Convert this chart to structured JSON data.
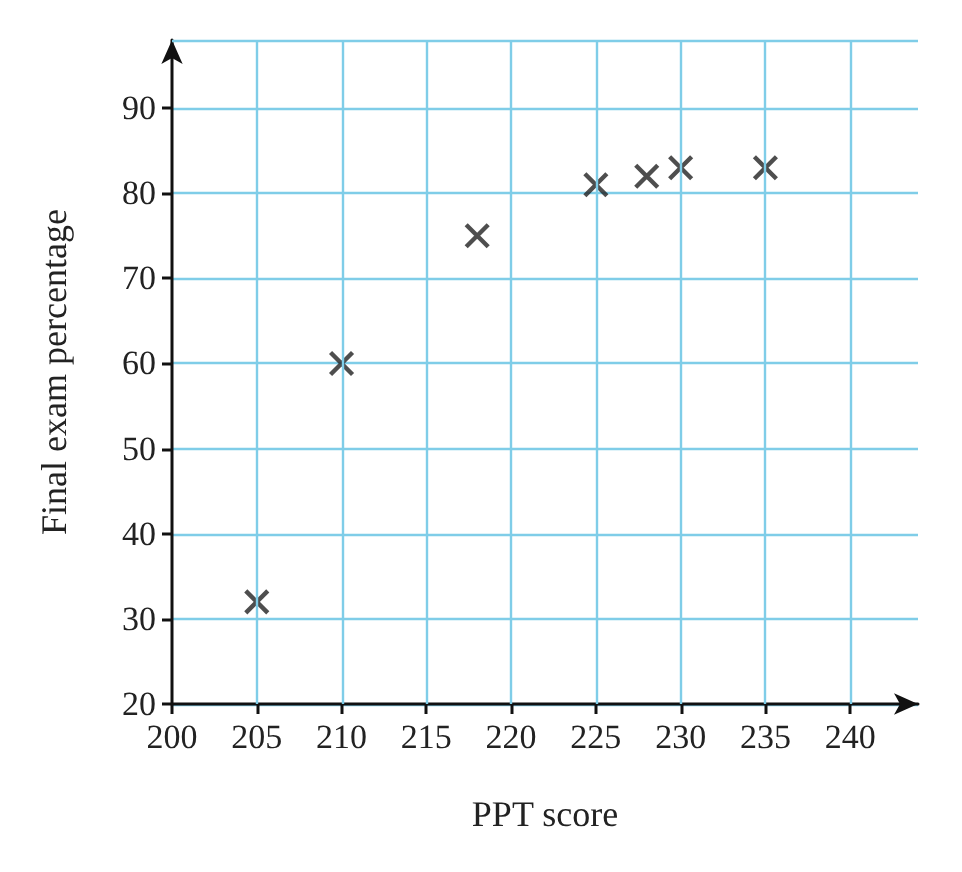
{
  "chart_data": {
    "type": "scatter",
    "xlabel": "PPT score",
    "ylabel": "Final exam percentage",
    "x": [
      205,
      210,
      218,
      225,
      228,
      230,
      235
    ],
    "values": [
      32,
      60,
      75,
      81,
      82,
      83,
      83
    ],
    "color": "#222222",
    "marker": "cross",
    "xlim": [
      200,
      244
    ],
    "xticks": [
      200,
      205,
      210,
      215,
      220,
      225,
      230,
      235,
      240
    ],
    "ylim": [
      20,
      98
    ],
    "yticks": [
      20,
      30,
      40,
      50,
      60,
      70,
      80,
      90
    ],
    "grid": true
  }
}
